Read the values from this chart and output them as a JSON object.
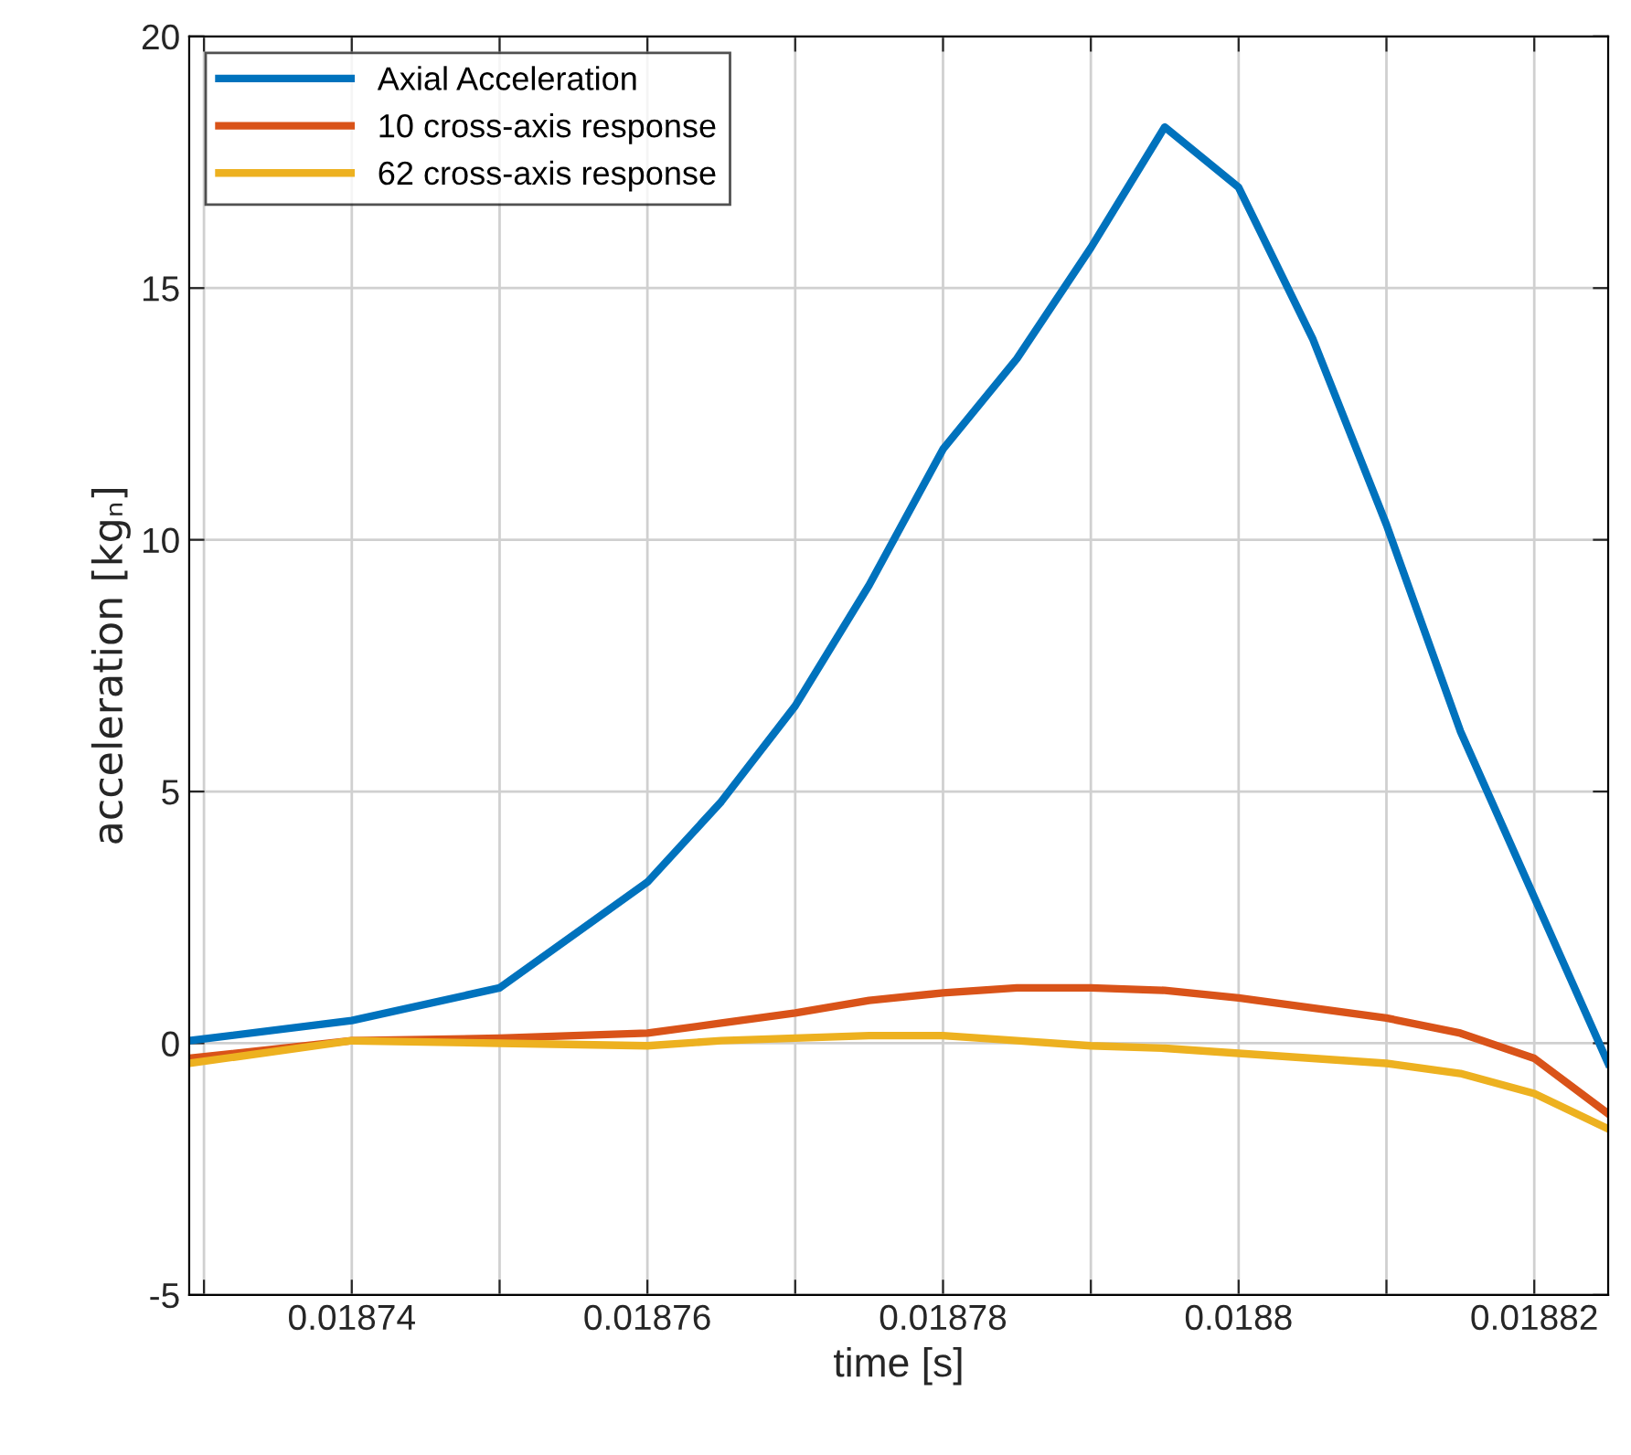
{
  "chart_data": {
    "type": "line",
    "xlabel": "time [s]",
    "ylabel": "acceleration [kgₙ]",
    "xlim": [
      0.018729,
      0.018825
    ],
    "ylim": [
      -5,
      20
    ],
    "xticks": [
      {
        "value": 0.01873,
        "label": null
      },
      0.01874,
      {
        "value": 0.01875,
        "label": null
      },
      0.01876,
      {
        "value": 0.01877,
        "label": null
      },
      0.01878,
      {
        "value": 0.01879,
        "label": null
      },
      0.0188,
      {
        "value": 0.01881,
        "label": null
      },
      0.01882
    ],
    "yticks": [
      -5,
      0,
      5,
      10,
      15,
      20
    ],
    "grid": true,
    "legend": "top left",
    "line_style": "solid",
    "marker": "none",
    "x": [
      0.018729,
      0.01874,
      0.01875,
      0.01876,
      0.018765,
      0.01877,
      0.018775,
      0.01878,
      0.018785,
      0.01879,
      0.018795,
      0.0188,
      0.018805,
      0.01881,
      0.018815,
      0.01882,
      0.018825
    ],
    "series": [
      {
        "name": "Axial Acceleration",
        "color": "#0072bd",
        "values": [
          0.05,
          0.45,
          1.1,
          3.2,
          4.8,
          6.7,
          9.1,
          11.8,
          13.6,
          15.8,
          18.2,
          17.0,
          14.0,
          10.3,
          6.2,
          2.9,
          -0.4
        ]
      },
      {
        "name": "10 cross-axis response",
        "color": "#d95319",
        "values": [
          -0.3,
          0.05,
          0.1,
          0.2,
          0.4,
          0.6,
          0.85,
          1.0,
          1.1,
          1.1,
          1.05,
          0.9,
          0.7,
          0.5,
          0.2,
          -0.3,
          -1.4
        ]
      },
      {
        "name": "62 cross-axis response",
        "color": "#edb120",
        "values": [
          -0.4,
          0.05,
          0.0,
          -0.05,
          0.05,
          0.1,
          0.15,
          0.15,
          0.05,
          -0.05,
          -0.1,
          -0.2,
          -0.3,
          -0.4,
          -0.6,
          -1.0,
          -1.7
        ]
      }
    ]
  }
}
